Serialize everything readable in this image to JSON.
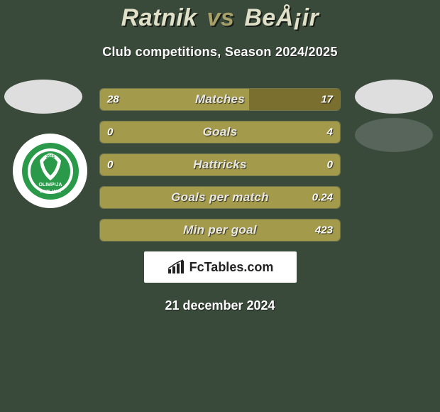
{
  "title": {
    "player1": "Ratnik",
    "vs": "vs",
    "player2": "BeÅ¡ir",
    "player1_color": "#e0e0c8",
    "player2_color": "#e0e0c8",
    "vs_color": "#a8a06a"
  },
  "subtitle": "Club competitions, Season 2024/2025",
  "background_color": "#3a4a3a",
  "club_logo": {
    "name": "Olimpija Ljubljana",
    "outer_circle_fill": "#2a9a4a",
    "inner_text": "OLIMPIJA",
    "inner_text2": "LJUBLJANA",
    "year": "1911"
  },
  "side_badges": {
    "left_color": "#dedede",
    "right_color": "#dedede",
    "right2_color": "#57655a"
  },
  "stats": [
    {
      "label": "Matches",
      "left_value": "28",
      "right_value": "17",
      "left_pct": 62,
      "right_pct": 38,
      "left_color": "#a39a4c",
      "right_color": "#7a6f2e"
    },
    {
      "label": "Goals",
      "left_value": "0",
      "right_value": "4",
      "left_pct": 2,
      "right_pct": 98,
      "left_color": "#a39a4c",
      "right_color": "#a39a4c"
    },
    {
      "label": "Hattricks",
      "left_value": "0",
      "right_value": "0",
      "left_pct": 50,
      "right_pct": 50,
      "left_color": "#a39a4c",
      "right_color": "#a39a4c"
    },
    {
      "label": "Goals per match",
      "left_value": "",
      "right_value": "0.24",
      "left_pct": 0,
      "right_pct": 100,
      "left_color": "#a39a4c",
      "right_color": "#a39a4c"
    },
    {
      "label": "Min per goal",
      "left_value": "",
      "right_value": "423",
      "left_pct": 0,
      "right_pct": 100,
      "left_color": "#a39a4c",
      "right_color": "#a39a4c"
    }
  ],
  "branding": {
    "text": "FcTables.com",
    "icon_color": "#222222"
  },
  "date": "21 december 2024"
}
